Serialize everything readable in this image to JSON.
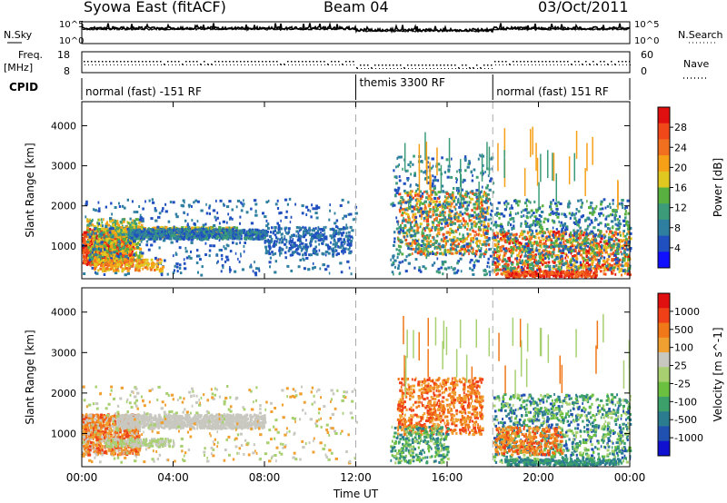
{
  "header": {
    "title": "Syowa East (fitACF)",
    "beam": "Beam 04",
    "date": "03/Oct/2011"
  },
  "noise_panel": {
    "left_label": "N.Sky",
    "right_label": "N.Search",
    "left_ticks": [
      "10^5",
      "10^0"
    ],
    "right_ticks": [
      "10^5",
      "10^0"
    ]
  },
  "freq_panel": {
    "left_label_1": "Freq.",
    "left_label_2": "[MHz]",
    "right_label": "Nave",
    "left_ticks": [
      "18",
      "8"
    ],
    "right_ticks": [
      "60",
      "0"
    ]
  },
  "cpid": {
    "label": "CPID",
    "segments": [
      {
        "name": "normal (fast) -151 RF",
        "start_hour": 0,
        "end_hour": 12
      },
      {
        "name": "themis 3300 RF",
        "start_hour": 12,
        "end_hour": 18
      },
      {
        "name": "normal (fast) 151 RF",
        "start_hour": 18,
        "end_hour": 24
      }
    ]
  },
  "chart_data": [
    {
      "type": "heatmap",
      "name": "power",
      "ylabel": "Slant Range [km]",
      "yticks": [
        1000,
        2000,
        3000,
        4000
      ],
      "ylim": [
        180,
        4600
      ],
      "colorbar_label": "Power [dB]",
      "colorbar_ticks": [
        "4",
        "8",
        "12",
        "16",
        "20",
        "24",
        "28"
      ],
      "colorbar_colors": [
        "#1010ff",
        "#2050c0",
        "#2f7fa0",
        "#3c9c7a",
        "#58b040",
        "#e0c820",
        "#f6a018",
        "#f07020",
        "#f04818",
        "#e01010"
      ],
      "dashed_lines_hours": [
        12,
        18
      ]
    },
    {
      "type": "heatmap",
      "name": "velocity",
      "ylabel": "Slant Range [km]",
      "yticks": [
        1000,
        2000,
        3000,
        4000
      ],
      "ylim": [
        180,
        4600
      ],
      "colorbar_label": "Velocity [m s^-1]",
      "colorbar_ticks": [
        "1000",
        "500",
        "100",
        "25",
        "-25",
        "-100",
        "-500",
        "-1000"
      ],
      "colorbar_colors": [
        "#1010d0",
        "#2050b0",
        "#2c7c90",
        "#3ca06a",
        "#6cc040",
        "#a8d070",
        "#c8c8c0",
        "#f0a030",
        "#f07818",
        "#f04018",
        "#e01010"
      ],
      "dashed_lines_hours": [
        12,
        18
      ]
    }
  ],
  "time_axis": {
    "label": "Time UT",
    "ticks": [
      "00:00",
      "04:00",
      "08:00",
      "12:00",
      "16:00",
      "20:00",
      "00:00"
    ]
  }
}
